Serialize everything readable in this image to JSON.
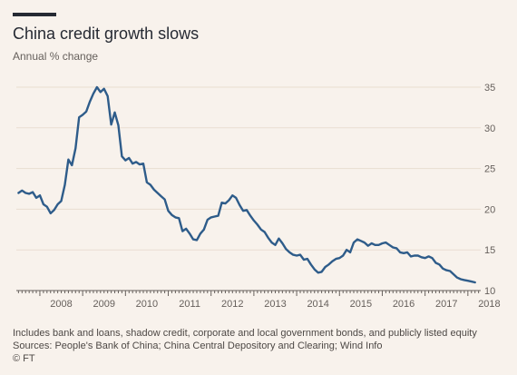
{
  "header": {
    "title": "China credit growth slows",
    "subtitle": "Annual % change"
  },
  "footer": {
    "note": "Includes bank and loans, shadow credit, corporate and local government bonds, and publicly listed equity",
    "sources": "Sources: People's Bank of China; China Central Depository and Clearing; Wind Info",
    "credit": "© FT"
  },
  "colors": {
    "background": "#f8f2ec",
    "line": "#2e5c8a",
    "grid": "#e9ddd1",
    "axis": "#66605c",
    "accent": "#262a33"
  },
  "chart_data": {
    "type": "line",
    "title": "China credit growth slows",
    "subtitle": "Annual % change",
    "xlabel": "",
    "ylabel": "",
    "xlim": [
      2007.45,
      2018.3
    ],
    "ylim": [
      10,
      35
    ],
    "y_ticks": [
      10,
      15,
      20,
      25,
      30,
      35
    ],
    "x_tick_labels": [
      "2008",
      "2009",
      "2010",
      "2011",
      "2012",
      "2013",
      "2014",
      "2015",
      "2016",
      "2017",
      "2018"
    ],
    "grid": true,
    "y_axis_position": "right",
    "series": [
      {
        "name": "",
        "x": [
          2007.5,
          2007.583,
          2007.667,
          2007.75,
          2007.833,
          2007.917,
          2008.0,
          2008.083,
          2008.167,
          2008.25,
          2008.333,
          2008.417,
          2008.5,
          2008.583,
          2008.667,
          2008.75,
          2008.833,
          2008.917,
          2009.0,
          2009.083,
          2009.167,
          2009.25,
          2009.333,
          2009.417,
          2009.5,
          2009.583,
          2009.667,
          2009.75,
          2009.833,
          2009.917,
          2010.0,
          2010.083,
          2010.167,
          2010.25,
          2010.333,
          2010.417,
          2010.5,
          2010.583,
          2010.667,
          2010.75,
          2010.833,
          2010.917,
          2011.0,
          2011.083,
          2011.167,
          2011.25,
          2011.333,
          2011.417,
          2011.5,
          2011.583,
          2011.667,
          2011.75,
          2011.833,
          2011.917,
          2012.0,
          2012.083,
          2012.167,
          2012.25,
          2012.333,
          2012.417,
          2012.5,
          2012.583,
          2012.667,
          2012.75,
          2012.833,
          2012.917,
          2013.0,
          2013.083,
          2013.167,
          2013.25,
          2013.333,
          2013.417,
          2013.5,
          2013.583,
          2013.667,
          2013.75,
          2013.833,
          2013.917,
          2014.0,
          2014.083,
          2014.167,
          2014.25,
          2014.333,
          2014.417,
          2014.5,
          2014.583,
          2014.667,
          2014.75,
          2014.833,
          2014.917,
          2015.0,
          2015.083,
          2015.167,
          2015.25,
          2015.333,
          2015.417,
          2015.5,
          2015.583,
          2015.667,
          2015.75,
          2015.833,
          2015.917,
          2016.0,
          2016.083,
          2016.167,
          2016.25,
          2016.333,
          2016.417,
          2016.5,
          2016.583,
          2016.667,
          2016.75,
          2016.833,
          2016.917,
          2017.0,
          2017.083,
          2017.167,
          2017.25,
          2017.333,
          2017.417,
          2017.5,
          2017.583,
          2017.667,
          2017.75,
          2017.833,
          2017.917,
          2018.0,
          2018.083,
          2018.167
        ],
        "y": [
          22.0,
          22.3,
          22.0,
          21.9,
          22.1,
          21.4,
          21.7,
          20.6,
          20.3,
          19.5,
          19.9,
          20.6,
          21.0,
          23.0,
          26.1,
          25.4,
          27.5,
          31.3,
          31.6,
          32.0,
          33.2,
          34.2,
          35.0,
          34.4,
          34.8,
          33.9,
          30.4,
          31.9,
          30.3,
          26.5,
          26.0,
          26.3,
          25.6,
          25.8,
          25.5,
          25.6,
          23.3,
          23.0,
          22.4,
          22.0,
          21.6,
          21.2,
          19.8,
          19.3,
          19.0,
          18.9,
          17.3,
          17.6,
          17.0,
          16.3,
          16.2,
          17.0,
          17.5,
          18.7,
          19.0,
          19.1,
          19.2,
          20.8,
          20.7,
          21.1,
          21.7,
          21.4,
          20.5,
          19.8,
          19.9,
          19.2,
          18.6,
          18.1,
          17.5,
          17.2,
          16.5,
          15.9,
          15.6,
          16.4,
          15.8,
          15.1,
          14.7,
          14.4,
          14.3,
          14.4,
          13.8,
          13.9,
          13.2,
          12.6,
          12.2,
          12.3,
          12.9,
          13.2,
          13.6,
          13.9,
          14.0,
          14.3,
          15.0,
          14.7,
          15.9,
          16.3,
          16.1,
          15.9,
          15.5,
          15.8,
          15.6,
          15.6,
          15.8,
          15.9,
          15.6,
          15.3,
          15.2,
          14.7,
          14.6,
          14.7,
          14.2,
          14.3,
          14.3,
          14.1,
          14.0,
          14.2,
          14.0,
          13.4,
          13.2,
          12.7,
          12.5,
          12.4,
          12.0,
          11.6,
          11.4,
          11.3,
          11.2,
          11.1,
          11.0
        ]
      }
    ]
  }
}
